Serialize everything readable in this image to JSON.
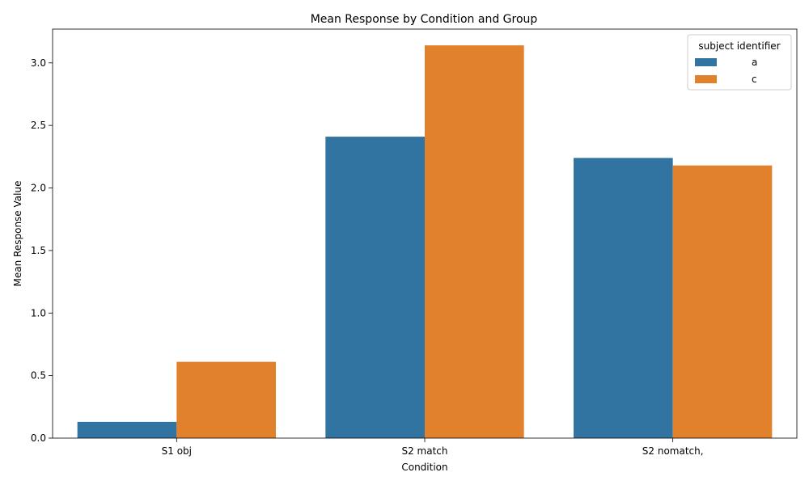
{
  "chart_data": {
    "type": "bar",
    "title": "Mean Response by Condition and Group",
    "xlabel": "Condition",
    "ylabel": "Mean Response Value",
    "categories": [
      "S1 obj",
      "S2 match",
      "S2 nomatch,"
    ],
    "series": [
      {
        "name": "a",
        "color": "#3274a1",
        "values": [
          0.13,
          2.41,
          2.24
        ]
      },
      {
        "name": "c",
        "color": "#e1812c",
        "values": [
          0.61,
          3.14,
          2.18
        ]
      }
    ],
    "ylim": [
      0,
      3.27
    ],
    "yticks": [
      0.0,
      0.5,
      1.0,
      1.5,
      2.0,
      2.5,
      3.0
    ],
    "ytick_labels": [
      "0.0",
      "0.5",
      "1.0",
      "1.5",
      "2.0",
      "2.5",
      "3.0"
    ],
    "grid": false,
    "legend": {
      "title": "subject identifier",
      "placement": "top-right"
    }
  }
}
